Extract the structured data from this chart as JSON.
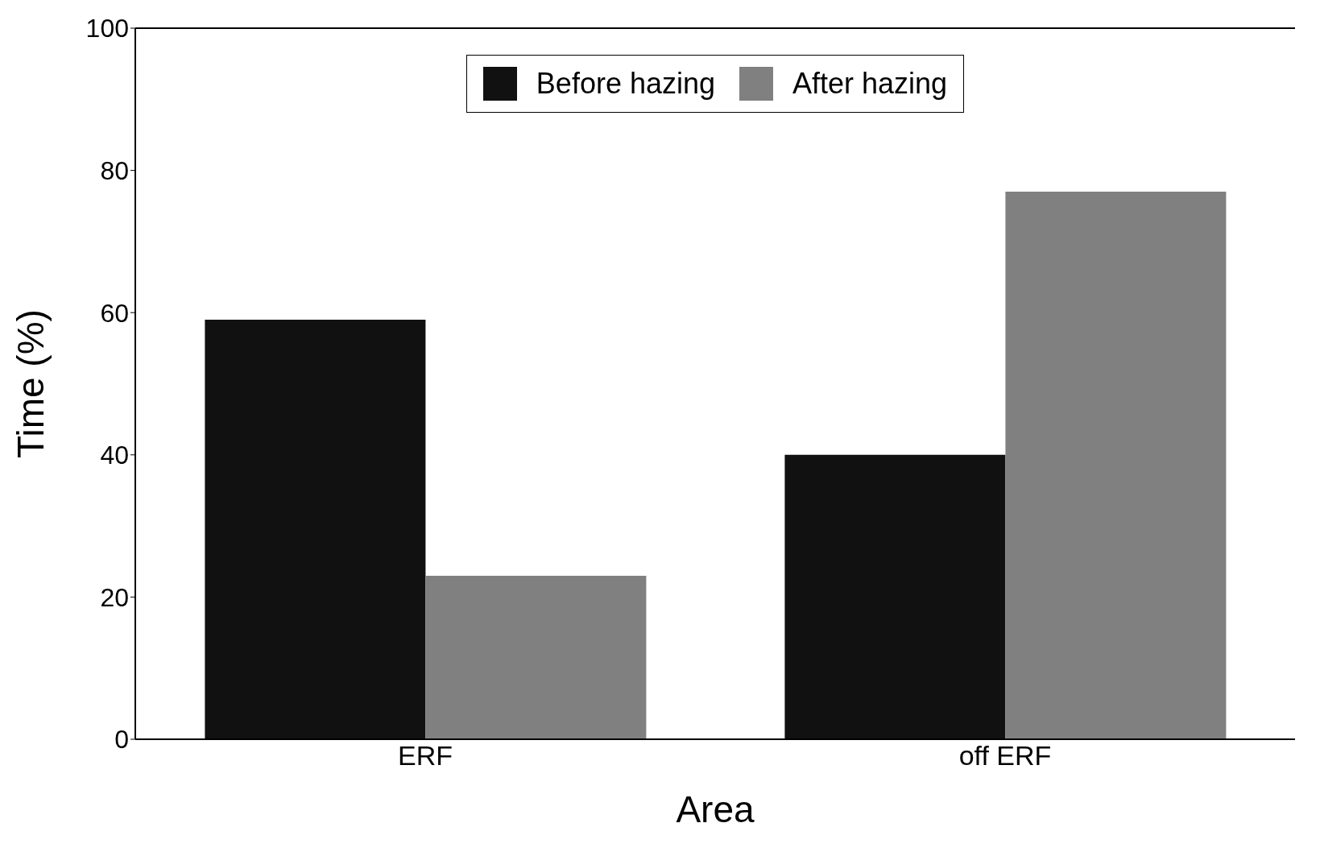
{
  "chart_data": {
    "type": "bar",
    "xlabel": "Area",
    "ylabel": "Time (%)",
    "categories": [
      "ERF",
      "off ERF"
    ],
    "series": [
      {
        "name": "Before hazing",
        "color": "#111111",
        "values": [
          59,
          40
        ]
      },
      {
        "name": "After hazing",
        "color": "#808080",
        "values": [
          23,
          77
        ]
      }
    ],
    "ylim": [
      0,
      100
    ],
    "yticks": [
      0,
      20,
      40,
      60,
      80,
      100
    ],
    "grid": false,
    "legend": "top"
  }
}
